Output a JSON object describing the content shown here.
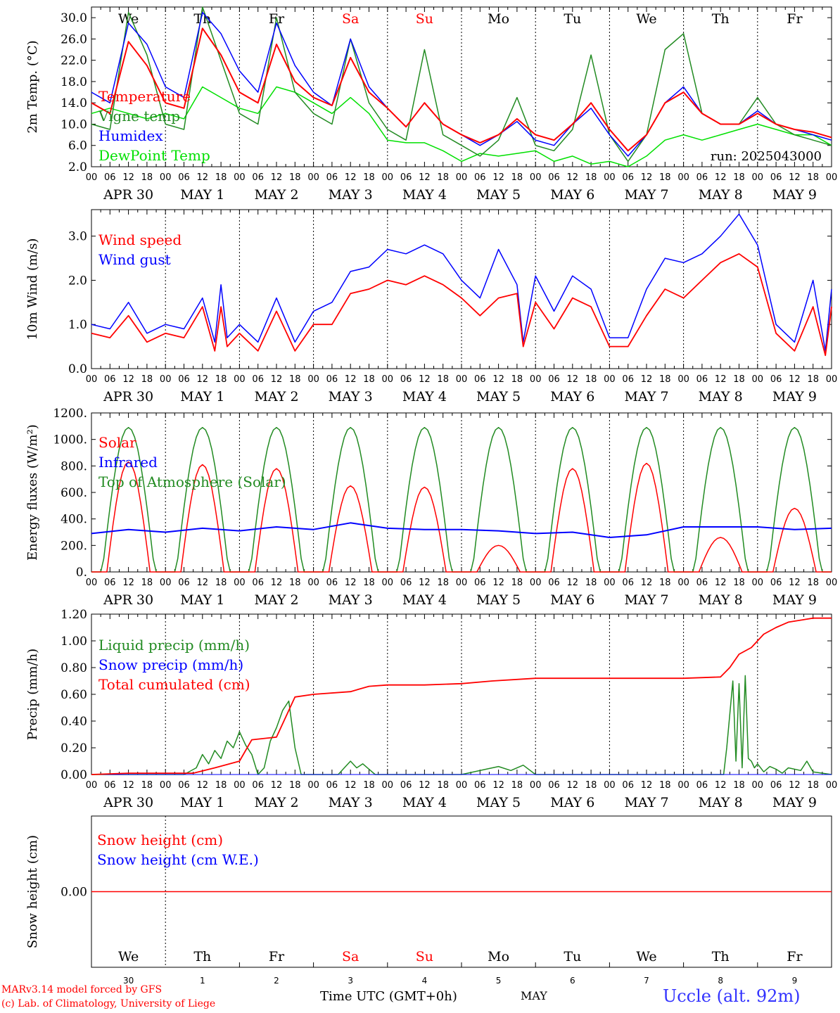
{
  "days": {
    "weekdays": [
      "We",
      "Th",
      "Fr",
      "Sa",
      "Su",
      "Mo",
      "Tu",
      "We",
      "Th",
      "Fr"
    ],
    "weekend_flags": [
      false,
      false,
      false,
      true,
      true,
      false,
      false,
      false,
      false,
      false
    ],
    "date_labels": [
      "APR 30",
      "MAY  1",
      "MAY  2",
      "MAY  3",
      "MAY  4",
      "MAY  5",
      "MAY  6",
      "MAY  7",
      "MAY  8",
      "MAY  9"
    ],
    "day_numbers": [
      "30",
      "1",
      "2",
      "3",
      "4",
      "5",
      "6",
      "7",
      "8",
      "9"
    ],
    "hour_ticks": [
      "00",
      "06",
      "12",
      "18"
    ],
    "final_tick": "00"
  },
  "colors": {
    "red": "#ff0000",
    "green": "#228b22",
    "blue": "#0000ff",
    "lightgreen": "#00e000",
    "weekend": "#ff0000",
    "station": "#3333ff",
    "credit": "#ff0000"
  },
  "footer": {
    "credit_line1": "MARv3.14 model forced by GFS",
    "credit_line2": "(c) Lab. of Climatology, University of Liege",
    "time_label": "Time UTC (GMT+0h)",
    "month_label": "MAY",
    "station": "Uccle (alt. 92m)"
  },
  "chart_data": [
    {
      "type": "line",
      "ylabel": "2m Temp. (°C)",
      "run_label": "run: 2025043000",
      "ylim": [
        2.0,
        32.0
      ],
      "yticks": [
        "2.0",
        "6.0",
        "10.0",
        "14.0",
        "18.0",
        "22.0",
        "26.0",
        "30.0"
      ],
      "legend": [
        {
          "label": "Temperature",
          "color": "#ff0000"
        },
        {
          "label": "Vigne temp",
          "color": "#228b22"
        },
        {
          "label": "Humidex",
          "color": "#0000ff"
        },
        {
          "label": "DewPoint Temp",
          "color": "#00e000"
        }
      ],
      "series": [
        {
          "color": "#ff0000",
          "x": [
            0,
            6,
            12,
            18,
            24,
            30,
            36,
            42,
            48,
            54,
            60,
            66,
            72,
            78,
            84,
            90,
            96,
            102,
            108,
            114,
            120,
            126,
            132,
            138,
            144,
            150,
            156,
            162,
            168,
            174,
            180,
            186,
            192,
            198,
            204,
            210,
            216,
            222,
            228,
            234,
            240
          ],
          "values": [
            14,
            12,
            25.5,
            21,
            14,
            13,
            28,
            23,
            16,
            14,
            25,
            18,
            15,
            13.5,
            22.5,
            16,
            13,
            9.5,
            14,
            10,
            8,
            6.5,
            8,
            11,
            8,
            7,
            10,
            14,
            9,
            5,
            8,
            14,
            16,
            12,
            10,
            10,
            12,
            10,
            9,
            8.5,
            7.5
          ]
        },
        {
          "color": "#228b22",
          "x": [
            0,
            6,
            12,
            18,
            24,
            30,
            36,
            42,
            48,
            54,
            60,
            66,
            72,
            78,
            84,
            90,
            96,
            102,
            108,
            114,
            120,
            126,
            132,
            138,
            144,
            150,
            156,
            162,
            168,
            174,
            180,
            186,
            192,
            198,
            204,
            210,
            216,
            222,
            228,
            234,
            240
          ],
          "values": [
            10,
            9,
            31,
            23,
            10,
            9,
            32,
            22,
            12,
            10,
            30,
            16,
            12,
            10,
            26,
            14,
            9,
            7,
            24,
            8,
            6,
            4,
            7,
            15,
            6,
            5,
            9,
            23,
            8,
            3,
            8,
            24,
            27,
            12,
            10,
            10,
            15,
            10,
            8,
            7,
            6
          ]
        },
        {
          "color": "#0000ff",
          "x": [
            0,
            6,
            12,
            18,
            24,
            30,
            36,
            42,
            48,
            54,
            60,
            66,
            72,
            78,
            84,
            90,
            96,
            102,
            108,
            114,
            120,
            126,
            132,
            138,
            144,
            150,
            156,
            162,
            168,
            174,
            180,
            186,
            192,
            198,
            204,
            210,
            216,
            222,
            228,
            234,
            240
          ],
          "values": [
            16,
            14,
            29,
            25,
            17,
            15,
            31,
            27,
            20,
            16,
            29,
            21,
            16,
            13.5,
            26,
            17,
            13,
            9.5,
            14,
            10,
            8,
            6,
            8,
            10.5,
            7,
            6,
            10,
            13,
            8,
            4,
            8,
            14,
            17,
            12,
            10,
            10,
            12.5,
            10,
            9,
            8,
            7
          ]
        },
        {
          "color": "#00e000",
          "x": [
            0,
            6,
            12,
            18,
            24,
            30,
            36,
            42,
            48,
            54,
            60,
            66,
            72,
            78,
            84,
            90,
            96,
            102,
            108,
            114,
            120,
            126,
            132,
            138,
            144,
            150,
            156,
            162,
            168,
            174,
            180,
            186,
            192,
            198,
            204,
            210,
            216,
            222,
            228,
            234,
            240
          ],
          "values": [
            12,
            13,
            12,
            11,
            12,
            11,
            17,
            15,
            13,
            12,
            17,
            16,
            14,
            12,
            15,
            12,
            7,
            6.5,
            6.5,
            5,
            3,
            4.5,
            4,
            4.5,
            5,
            3,
            4,
            2.5,
            3,
            2,
            4,
            7,
            8,
            7,
            8,
            9,
            10,
            9,
            8,
            8,
            6
          ]
        }
      ]
    },
    {
      "type": "line",
      "ylabel": "10m Wind (m/s)",
      "ylim": [
        0,
        3.6
      ],
      "yticks": [
        "0.0",
        "1.0",
        "2.0",
        "3.0"
      ],
      "legend": [
        {
          "label": "Wind speed",
          "color": "#ff0000"
        },
        {
          "label": "Wind gust",
          "color": "#0000ff"
        }
      ],
      "series": [
        {
          "color": "#ff0000",
          "x": [
            0,
            6,
            12,
            18,
            24,
            30,
            36,
            40,
            42,
            44,
            48,
            54,
            60,
            66,
            72,
            78,
            84,
            90,
            96,
            102,
            108,
            114,
            120,
            126,
            132,
            138,
            140,
            144,
            150,
            156,
            162,
            168,
            174,
            180,
            186,
            192,
            198,
            204,
            210,
            216,
            222,
            228,
            234,
            238,
            240
          ],
          "values": [
            0.8,
            0.7,
            1.2,
            0.6,
            0.8,
            0.7,
            1.4,
            0.4,
            1.4,
            0.5,
            0.8,
            0.4,
            1.3,
            0.4,
            1.0,
            1.0,
            1.7,
            1.8,
            2.0,
            1.9,
            2.1,
            1.9,
            1.6,
            1.2,
            1.6,
            1.7,
            0.5,
            1.5,
            0.9,
            1.6,
            1.4,
            0.5,
            0.5,
            1.2,
            1.8,
            1.6,
            2.0,
            2.4,
            2.6,
            2.3,
            0.8,
            0.4,
            1.4,
            0.3,
            1.4
          ]
        },
        {
          "color": "#0000ff",
          "x": [
            0,
            6,
            12,
            18,
            24,
            30,
            36,
            40,
            42,
            44,
            48,
            54,
            60,
            66,
            72,
            78,
            84,
            90,
            96,
            102,
            108,
            114,
            120,
            126,
            132,
            138,
            140,
            144,
            150,
            156,
            162,
            168,
            174,
            180,
            186,
            192,
            198,
            204,
            210,
            216,
            222,
            228,
            234,
            238,
            240
          ],
          "values": [
            1.0,
            0.9,
            1.5,
            0.8,
            1.0,
            0.9,
            1.6,
            0.6,
            1.9,
            0.7,
            1.0,
            0.6,
            1.6,
            0.6,
            1.3,
            1.5,
            2.2,
            2.3,
            2.7,
            2.6,
            2.8,
            2.6,
            2.0,
            1.6,
            2.7,
            1.9,
            0.6,
            2.1,
            1.3,
            2.1,
            1.8,
            0.7,
            0.7,
            1.8,
            2.5,
            2.4,
            2.6,
            3.0,
            3.5,
            2.8,
            1.0,
            0.6,
            2.0,
            0.4,
            1.8
          ]
        }
      ]
    },
    {
      "type": "line",
      "ylabel": "Energy fluxes (W/m²)",
      "ylim": [
        0,
        1200
      ],
      "yticks": [
        "0.",
        "200.",
        "400.",
        "600.",
        "800.",
        "1000.",
        "1200."
      ],
      "legend": [
        {
          "label": "Solar",
          "color": "#ff0000"
        },
        {
          "label": "Infrared",
          "color": "#0000ff"
        },
        {
          "label": "Top of Atmosphere (Solar)",
          "color": "#228b22"
        }
      ],
      "toa_peak": 1090,
      "solar_day_peaks": [
        830,
        810,
        780,
        650,
        640,
        200,
        780,
        820,
        260,
        480
      ],
      "infrared": {
        "x": [
          0,
          12,
          24,
          36,
          48,
          60,
          72,
          84,
          96,
          108,
          120,
          132,
          144,
          156,
          168,
          180,
          192,
          204,
          216,
          228,
          240
        ],
        "values": [
          290,
          320,
          300,
          330,
          310,
          340,
          320,
          370,
          330,
          320,
          320,
          310,
          290,
          300,
          260,
          280,
          340,
          340,
          340,
          320,
          330
        ]
      }
    },
    {
      "type": "line",
      "ylabel": "Precip (mm/h)",
      "ylim": [
        0,
        1.2
      ],
      "yticks": [
        "0.00",
        "0.20",
        "0.40",
        "0.60",
        "0.80",
        "1.00",
        "1.20"
      ],
      "legend": [
        {
          "label": "Liquid precip (mm/h)",
          "color": "#228b22"
        },
        {
          "label": "Snow precip (mm/h)",
          "color": "#0000ff"
        },
        {
          "label": "Total cumulated (cm)",
          "color": "#ff0000"
        }
      ],
      "series": [
        {
          "color": "#ff0000",
          "x": [
            0,
            12,
            24,
            33,
            40,
            48,
            52,
            60,
            66,
            72,
            84,
            90,
            96,
            108,
            120,
            130,
            144,
            156,
            168,
            180,
            192,
            204,
            207,
            210,
            214,
            218,
            222,
            226,
            234,
            240
          ],
          "values": [
            0,
            0.01,
            0.01,
            0.01,
            0.05,
            0.1,
            0.26,
            0.28,
            0.58,
            0.6,
            0.62,
            0.66,
            0.67,
            0.67,
            0.68,
            0.7,
            0.72,
            0.72,
            0.72,
            0.72,
            0.72,
            0.73,
            0.8,
            0.9,
            0.95,
            1.05,
            1.1,
            1.14,
            1.17,
            1.17
          ]
        },
        {
          "color": "#228b22",
          "x": [
            0,
            30,
            34,
            36,
            38,
            40,
            42,
            44,
            46,
            48,
            50,
            52,
            54,
            56,
            58,
            60,
            62,
            64,
            66,
            68,
            70,
            72,
            80,
            82,
            84,
            86,
            88,
            90,
            92,
            100,
            120,
            128,
            132,
            136,
            140,
            144,
            205,
            206,
            208,
            209,
            210,
            211,
            212,
            213,
            214,
            215,
            216,
            218,
            220,
            222,
            224,
            226,
            230,
            232,
            234,
            240
          ],
          "values": [
            0,
            0,
            0.05,
            0.15,
            0.08,
            0.18,
            0.12,
            0.25,
            0.2,
            0.32,
            0.22,
            0.15,
            0,
            0.05,
            0.25,
            0.35,
            0.48,
            0.55,
            0.2,
            0,
            0,
            0,
            0,
            0.05,
            0.1,
            0.05,
            0.08,
            0.04,
            0,
            0,
            0,
            0.04,
            0.06,
            0.03,
            0.07,
            0,
            0,
            0.2,
            0.7,
            0.1,
            0.68,
            0.05,
            0.74,
            0.12,
            0.1,
            0.05,
            0.08,
            0.02,
            0.06,
            0.04,
            0.01,
            0.05,
            0.03,
            0.1,
            0.02,
            0
          ]
        }
      ]
    },
    {
      "type": "line",
      "ylabel": "Snow height (cm)",
      "ytick": "0.00",
      "legend": [
        {
          "label": "Snow height (cm)",
          "color": "#ff0000"
        },
        {
          "label": "Snow height (cm W.E.)",
          "color": "#0000ff"
        }
      ],
      "series": [
        {
          "color": "#ff0000",
          "x": [
            0,
            240
          ],
          "values": [
            0,
            0
          ]
        }
      ]
    }
  ]
}
